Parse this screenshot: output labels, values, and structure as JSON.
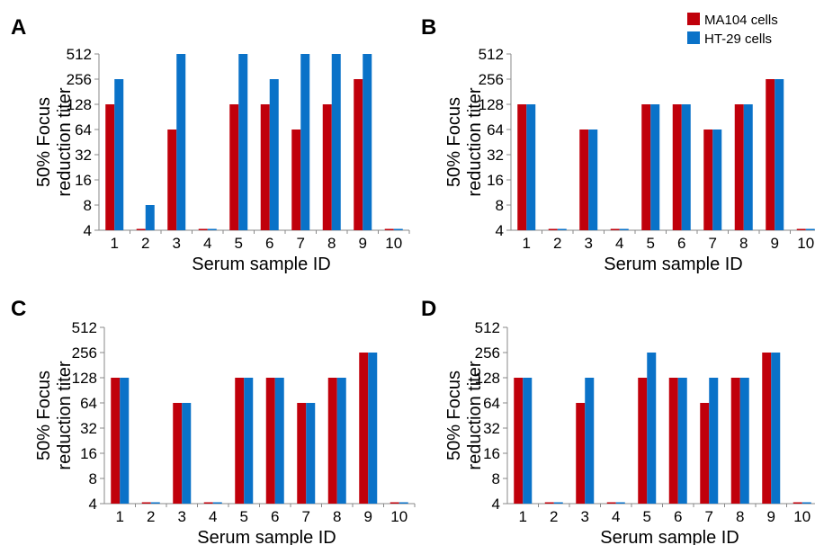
{
  "colors": {
    "series_1": "#c0000b",
    "series_2": "#0a72c8"
  },
  "legend": [
    "MA104 cells",
    "HT-29 cells"
  ],
  "chart_data": [
    {
      "panel": "A",
      "type": "bar",
      "xlabel": "Serum sample ID",
      "ylabel": [
        "50% Focus",
        "reduction titer"
      ],
      "y_scale": "log2",
      "ylim": [
        4,
        512
      ],
      "yticks": [
        4,
        8,
        16,
        32,
        64,
        128,
        256,
        512
      ],
      "categories": [
        "1",
        "2",
        "3",
        "4",
        "5",
        "6",
        "7",
        "8",
        "9",
        "10"
      ],
      "series": [
        {
          "name": "MA104 cells",
          "values": [
            128,
            4,
            64,
            4,
            128,
            128,
            64,
            128,
            256,
            4
          ]
        },
        {
          "name": "HT-29 cells",
          "values": [
            256,
            8,
            512,
            4,
            512,
            256,
            512,
            512,
            512,
            4
          ]
        }
      ]
    },
    {
      "panel": "B",
      "type": "bar",
      "xlabel": "Serum sample ID",
      "ylabel": [
        "50% Focus",
        "reduction titer"
      ],
      "y_scale": "log2",
      "ylim": [
        4,
        512
      ],
      "yticks": [
        4,
        8,
        16,
        32,
        64,
        128,
        256,
        512
      ],
      "categories": [
        "1",
        "2",
        "3",
        "4",
        "5",
        "6",
        "7",
        "8",
        "9",
        "10"
      ],
      "series": [
        {
          "name": "MA104 cells",
          "values": [
            128,
            4,
            64,
            4,
            128,
            128,
            64,
            128,
            256,
            4
          ]
        },
        {
          "name": "HT-29 cells",
          "values": [
            128,
            4,
            64,
            4,
            128,
            128,
            64,
            128,
            256,
            4
          ]
        }
      ]
    },
    {
      "panel": "C",
      "type": "bar",
      "xlabel": "Serum sample ID",
      "ylabel": [
        "50% Focus",
        "reduction titer"
      ],
      "y_scale": "log2",
      "ylim": [
        4,
        512
      ],
      "yticks": [
        4,
        8,
        16,
        32,
        64,
        128,
        256,
        512
      ],
      "categories": [
        "1",
        "2",
        "3",
        "4",
        "5",
        "6",
        "7",
        "8",
        "9",
        "10"
      ],
      "series": [
        {
          "name": "MA104 cells",
          "values": [
            128,
            4,
            64,
            4,
            128,
            128,
            64,
            128,
            256,
            4
          ]
        },
        {
          "name": "HT-29 cells",
          "values": [
            128,
            4,
            64,
            4,
            128,
            128,
            64,
            128,
            256,
            4
          ]
        }
      ]
    },
    {
      "panel": "D",
      "type": "bar",
      "xlabel": "Serum sample ID",
      "ylabel": [
        "50% Focus",
        "reduction titer"
      ],
      "y_scale": "log2",
      "ylim": [
        4,
        512
      ],
      "yticks": [
        4,
        8,
        16,
        32,
        64,
        128,
        256,
        512
      ],
      "categories": [
        "1",
        "2",
        "3",
        "4",
        "5",
        "6",
        "7",
        "8",
        "9",
        "10"
      ],
      "series": [
        {
          "name": "MA104 cells",
          "values": [
            128,
            4,
            64,
            4,
            128,
            128,
            64,
            128,
            256,
            4
          ]
        },
        {
          "name": "HT-29 cells",
          "values": [
            128,
            4,
            128,
            4,
            256,
            128,
            128,
            128,
            256,
            4
          ]
        }
      ]
    }
  ]
}
